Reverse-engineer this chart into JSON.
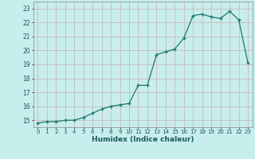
{
  "x": [
    0,
    1,
    2,
    3,
    4,
    5,
    6,
    7,
    8,
    9,
    10,
    11,
    12,
    13,
    14,
    15,
    16,
    17,
    18,
    19,
    20,
    21,
    22,
    23
  ],
  "y": [
    14.8,
    14.9,
    14.9,
    15.0,
    15.0,
    15.2,
    15.5,
    15.8,
    16.0,
    16.1,
    16.2,
    17.5,
    17.5,
    19.7,
    19.9,
    20.1,
    20.9,
    22.5,
    22.6,
    22.4,
    22.3,
    22.8,
    22.2,
    19.1
  ],
  "xlabel": "Humidex (Indice chaleur)",
  "line_color": "#1a7a6e",
  "marker_color": "#1a7a6e",
  "bg_color": "#c8eded",
  "grid_color": "#c8b0b0",
  "ylim": [
    14.5,
    23.5
  ],
  "xlim": [
    -0.5,
    23.5
  ],
  "yticks": [
    15,
    16,
    17,
    18,
    19,
    20,
    21,
    22,
    23
  ],
  "xticks": [
    0,
    1,
    2,
    3,
    4,
    5,
    6,
    7,
    8,
    9,
    10,
    11,
    12,
    13,
    14,
    15,
    16,
    17,
    18,
    19,
    20,
    21,
    22,
    23
  ]
}
